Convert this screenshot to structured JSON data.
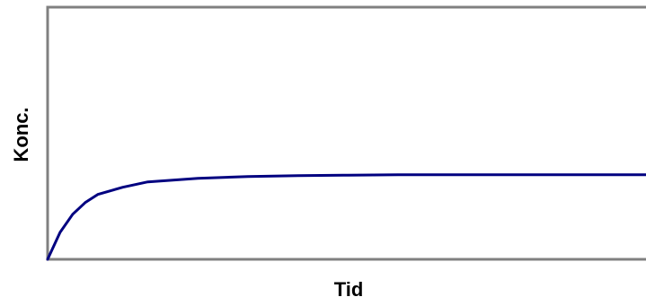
{
  "chart_data": {
    "type": "line",
    "title": "",
    "xlabel": "Tid",
    "ylabel": "Konc.",
    "xlim": [
      0,
      12
    ],
    "ylim": [
      0,
      2.8
    ],
    "grid": false,
    "legend": "none",
    "colors": {
      "line": "#000080",
      "frame": "#808080"
    },
    "series": [
      {
        "x": [
          0,
          0.25,
          0.5,
          0.75,
          1,
          1.5,
          2,
          3,
          4,
          5,
          6,
          7,
          8,
          9,
          10,
          11,
          12
        ],
        "y": [
          0,
          0.3,
          0.5,
          0.63,
          0.72,
          0.8,
          0.86,
          0.9,
          0.92,
          0.93,
          0.935,
          0.94,
          0.94,
          0.94,
          0.94,
          0.94,
          0.94
        ]
      }
    ]
  }
}
